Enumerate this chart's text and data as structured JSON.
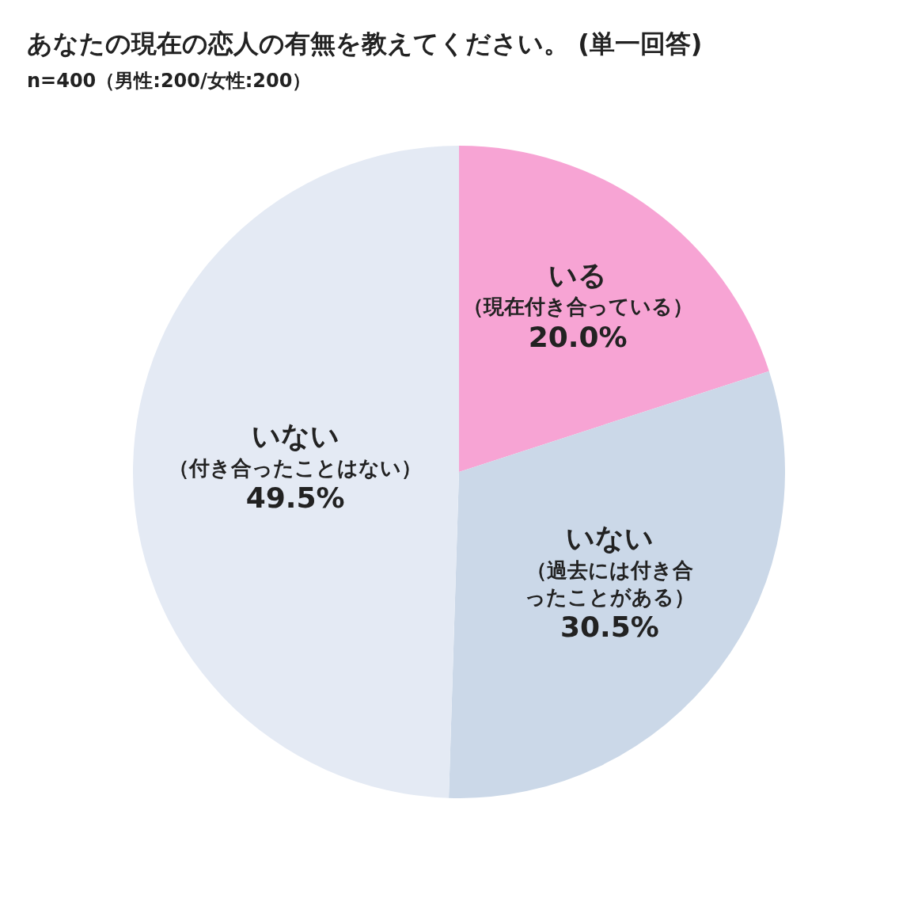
{
  "chart_data": {
    "type": "pie",
    "title": "あなたの現在の恋人の有無を教えてください。 (単一回答)",
    "subtitle": "n=400（男性:200/女性:200）",
    "categories": [
      "いる（現在付き合っている）",
      "いない（過去には付き合ったことがある）",
      "いない（付き合ったことはない）"
    ],
    "values": [
      20.0,
      30.5,
      49.5
    ],
    "colors": [
      "#f7a4d4",
      "#cbd8e8",
      "#e4eaf4"
    ],
    "value_labels": [
      "20.0%",
      "30.5%",
      "49.5%"
    ],
    "legend": false
  }
}
